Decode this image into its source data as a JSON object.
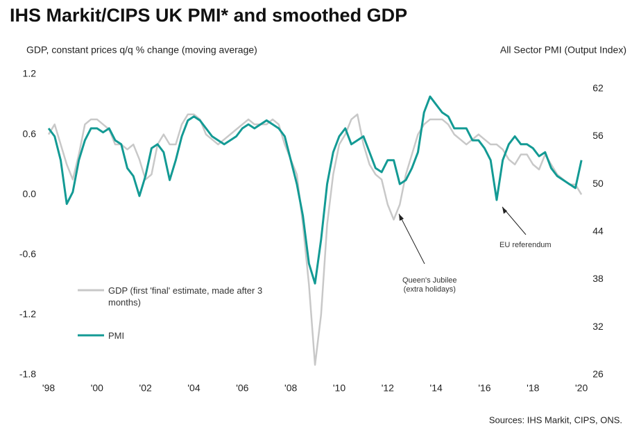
{
  "chart_data": {
    "type": "line",
    "title": "IHS Markit/CIPS UK PMI* and smoothed GDP",
    "y_label": "GDP, constant prices q/q % change (moving average)",
    "y2_label": "All Sector PMI (Output Index)",
    "source": "Sources: IHS Markit, CIPS, ONS.",
    "annotations": [
      "Queen's Jubilee\n(extra holidays)",
      "EU referendum"
    ],
    "x": [
      1998,
      1998.25,
      1998.5,
      1998.75,
      1999,
      1999.25,
      1999.5,
      1999.75,
      2000,
      2000.25,
      2000.5,
      2000.75,
      2001,
      2001.25,
      2001.5,
      2001.75,
      2002,
      2002.25,
      2002.5,
      2002.75,
      2003,
      2003.25,
      2003.5,
      2003.75,
      2004,
      2004.25,
      2004.5,
      2004.75,
      2005,
      2005.25,
      2005.5,
      2005.75,
      2006,
      2006.25,
      2006.5,
      2006.75,
      2007,
      2007.25,
      2007.5,
      2007.75,
      2008,
      2008.25,
      2008.5,
      2008.75,
      2009,
      2009.25,
      2009.5,
      2009.75,
      2010,
      2010.25,
      2010.5,
      2010.75,
      2011,
      2011.25,
      2011.5,
      2011.75,
      2012,
      2012.25,
      2012.5,
      2012.75,
      2013,
      2013.25,
      2013.5,
      2013.75,
      2014,
      2014.25,
      2014.5,
      2014.75,
      2015,
      2015.25,
      2015.5,
      2015.75,
      2016,
      2016.25,
      2016.5,
      2016.75,
      2017,
      2017.25,
      2017.5,
      2017.75,
      2018,
      2018.25,
      2018.5,
      2018.75,
      2019,
      2019.25,
      2019.5,
      2019.75,
      2020
    ],
    "xlim": [
      1997.77,
      2020.34
    ],
    "xticks": [
      {
        "value": 1998,
        "label": "'98"
      },
      {
        "value": 2000,
        "label": "'00"
      },
      {
        "value": 2002,
        "label": "'02"
      },
      {
        "value": 2004,
        "label": "'04"
      },
      {
        "value": 2006,
        "label": "'06"
      },
      {
        "value": 2008,
        "label": "'08"
      },
      {
        "value": 2010,
        "label": "'10"
      },
      {
        "value": 2012,
        "label": "'12"
      },
      {
        "value": 2014,
        "label": "'14"
      },
      {
        "value": 2016,
        "label": "'16"
      },
      {
        "value": 2018,
        "label": "'18"
      },
      {
        "value": 2020,
        "label": "'20"
      }
    ],
    "ylim": [
      -1.8,
      1.2
    ],
    "yticks": [
      {
        "value": -1.8,
        "label": "-1.8"
      },
      {
        "value": -1.2,
        "label": "-1.2"
      },
      {
        "value": -0.6,
        "label": "-0.6"
      },
      {
        "value": 0,
        "label": "0.0"
      },
      {
        "value": 0.6,
        "label": "0.6"
      },
      {
        "value": 1.2,
        "label": "1.2"
      }
    ],
    "y2lim": [
      26,
      63.8
    ],
    "y2ticks": [
      26,
      32,
      38,
      44,
      50,
      56,
      62
    ],
    "series": [
      {
        "name": "GDP (first 'final' estimate, made after 3 months)",
        "color": "#c8c8c8",
        "values": [
          0.6,
          0.7,
          0.5,
          0.3,
          0.15,
          0.4,
          0.7,
          0.75,
          0.75,
          0.7,
          0.65,
          0.5,
          0.5,
          0.45,
          0.5,
          0.35,
          0.15,
          0.2,
          0.5,
          0.6,
          0.5,
          0.5,
          0.7,
          0.8,
          0.8,
          0.75,
          0.6,
          0.55,
          0.5,
          0.55,
          0.6,
          0.65,
          0.7,
          0.75,
          0.7,
          0.7,
          0.7,
          0.75,
          0.7,
          0.5,
          0.35,
          0.2,
          -0.3,
          -0.9,
          -1.7,
          -1.2,
          -0.3,
          0.2,
          0.5,
          0.6,
          0.75,
          0.8,
          0.5,
          0.3,
          0.2,
          0.15,
          -0.1,
          -0.25,
          -0.1,
          0.2,
          0.4,
          0.6,
          0.7,
          0.75,
          0.75,
          0.75,
          0.7,
          0.6,
          0.55,
          0.5,
          0.55,
          0.6,
          0.55,
          0.5,
          0.5,
          0.45,
          0.35,
          0.3,
          0.4,
          0.4,
          0.3,
          0.25,
          0.4,
          0.3,
          0.2,
          0.15,
          0.1,
          0.1,
          0.0
        ]
      },
      {
        "name": "PMI",
        "color": "#139a94",
        "axis": "y2",
        "values": [
          57,
          56,
          53,
          47.5,
          49,
          53,
          55.5,
          57,
          57,
          56.5,
          57,
          55.5,
          55,
          52,
          51,
          48.5,
          51,
          54.5,
          55,
          54,
          50.5,
          53,
          56,
          58,
          58.5,
          58,
          57,
          56,
          55.5,
          55,
          55.5,
          56,
          57,
          57.5,
          57,
          57.5,
          58,
          57.5,
          57,
          56,
          53,
          50,
          46,
          40,
          37.5,
          43,
          50,
          54,
          56,
          57,
          55,
          55.5,
          56,
          54,
          52,
          51.5,
          53,
          53,
          50,
          50.5,
          52,
          54,
          59,
          61,
          60,
          59,
          58.5,
          57,
          57,
          57,
          55.5,
          55.5,
          54.5,
          53,
          48,
          53,
          55,
          56,
          55,
          55,
          54.5,
          53.5,
          54,
          52,
          51,
          50.5,
          50,
          49.5,
          53
        ]
      }
    ]
  }
}
